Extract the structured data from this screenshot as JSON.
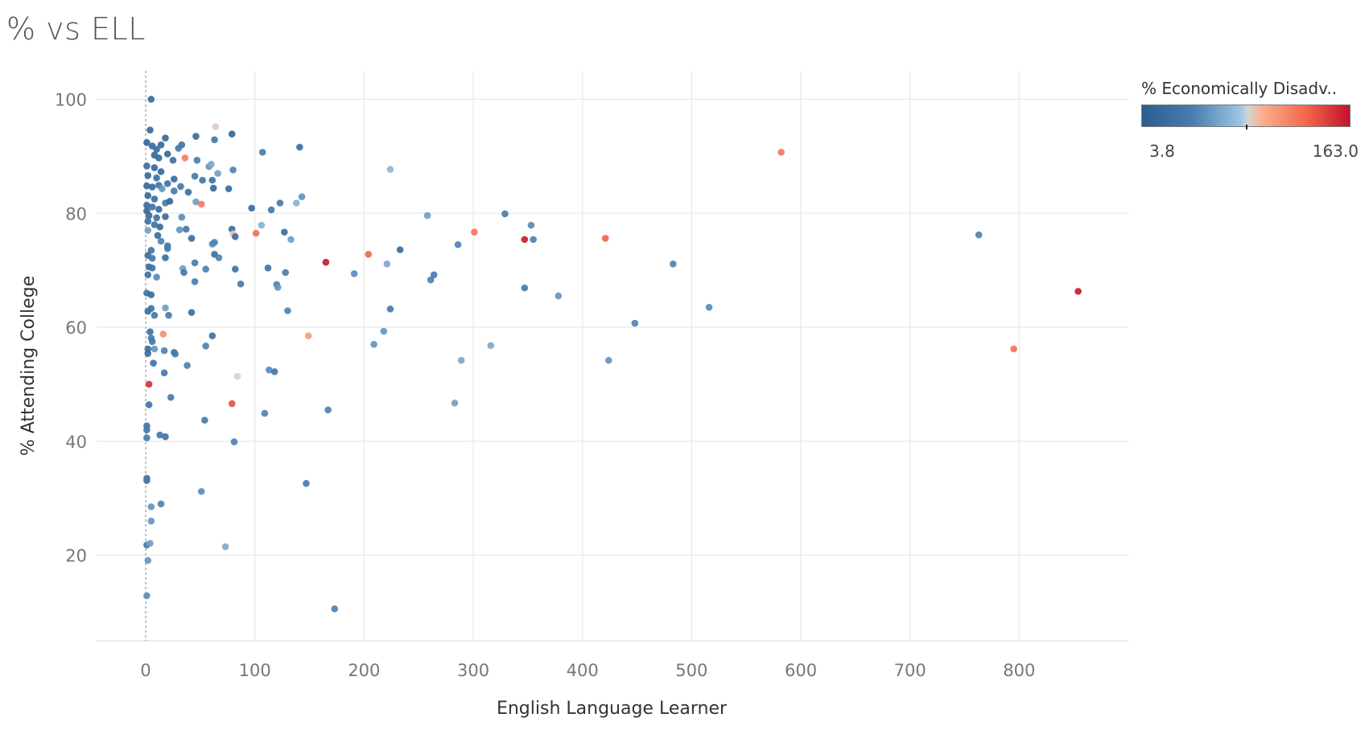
{
  "title": "% vs ELL",
  "legend": {
    "title": "% Economically Disadv..",
    "min_label": "3.8",
    "max_label": "163.0"
  },
  "chart_data": {
    "type": "scatter",
    "xlabel": "English Language Learner",
    "ylabel": "% Attending College",
    "xlim": [
      -45,
      900
    ],
    "ylim": [
      5,
      105
    ],
    "xticks": [
      0,
      100,
      200,
      300,
      400,
      500,
      600,
      700,
      800
    ],
    "yticks": [
      20,
      40,
      60,
      80,
      100
    ],
    "grid": true,
    "reference_line_x": 0,
    "color_variable": "% Economically Disadv..",
    "color_range": [
      3.8,
      163.0
    ],
    "points": [
      {
        "x": 5,
        "y": 100,
        "c": 20
      },
      {
        "x": 4,
        "y": 94.6,
        "c": 18
      },
      {
        "x": 1,
        "y": 92.4,
        "c": 15
      },
      {
        "x": 6,
        "y": 91.8,
        "c": 20
      },
      {
        "x": 10,
        "y": 91.2,
        "c": 22
      },
      {
        "x": 14,
        "y": 92.0,
        "c": 18
      },
      {
        "x": 18,
        "y": 93.2,
        "c": 18
      },
      {
        "x": 8,
        "y": 90.2,
        "c": 15
      },
      {
        "x": 12,
        "y": 89.7,
        "c": 20
      },
      {
        "x": 20,
        "y": 90.4,
        "c": 18
      },
      {
        "x": 25,
        "y": 89.3,
        "c": 25
      },
      {
        "x": 30,
        "y": 91.4,
        "c": 35
      },
      {
        "x": 33,
        "y": 92.0,
        "c": 30
      },
      {
        "x": 46,
        "y": 93.5,
        "c": 20
      },
      {
        "x": 63,
        "y": 92.9,
        "c": 35
      },
      {
        "x": 79,
        "y": 93.9,
        "c": 15
      },
      {
        "x": 64,
        "y": 95.2,
        "c": 88
      },
      {
        "x": 36,
        "y": 89.7,
        "c": 118
      },
      {
        "x": 47,
        "y": 89.3,
        "c": 40
      },
      {
        "x": 58,
        "y": 88.2,
        "c": 55
      },
      {
        "x": 60,
        "y": 88.6,
        "c": 65
      },
      {
        "x": 66,
        "y": 87.0,
        "c": 60
      },
      {
        "x": 80,
        "y": 87.6,
        "c": 45
      },
      {
        "x": 1,
        "y": 88.3,
        "c": 22
      },
      {
        "x": 8,
        "y": 88.0,
        "c": 18
      },
      {
        "x": 14,
        "y": 87.3,
        "c": 20
      },
      {
        "x": 2,
        "y": 86.6,
        "c": 18
      },
      {
        "x": 10,
        "y": 86.2,
        "c": 25
      },
      {
        "x": 20,
        "y": 85.2,
        "c": 30
      },
      {
        "x": 26,
        "y": 86.0,
        "c": 22
      },
      {
        "x": 45,
        "y": 86.5,
        "c": 40
      },
      {
        "x": 52,
        "y": 85.8,
        "c": 35
      },
      {
        "x": 61,
        "y": 85.8,
        "c": 28
      },
      {
        "x": 62,
        "y": 84.4,
        "c": 15
      },
      {
        "x": 76,
        "y": 84.3,
        "c": 22
      },
      {
        "x": 1,
        "y": 84.8,
        "c": 18
      },
      {
        "x": 6,
        "y": 84.6,
        "c": 20
      },
      {
        "x": 12,
        "y": 84.9,
        "c": 30
      },
      {
        "x": 15,
        "y": 84.3,
        "c": 55
      },
      {
        "x": 26,
        "y": 83.9,
        "c": 40
      },
      {
        "x": 32,
        "y": 84.7,
        "c": 35
      },
      {
        "x": 39,
        "y": 83.7,
        "c": 25
      },
      {
        "x": 2,
        "y": 83.1,
        "c": 18
      },
      {
        "x": 8,
        "y": 82.5,
        "c": 25
      },
      {
        "x": 18,
        "y": 81.8,
        "c": 40
      },
      {
        "x": 22,
        "y": 82.1,
        "c": 15
      },
      {
        "x": 46,
        "y": 82.0,
        "c": 60
      },
      {
        "x": 51,
        "y": 81.6,
        "c": 120
      },
      {
        "x": 1,
        "y": 81.4,
        "c": 22
      },
      {
        "x": 6,
        "y": 81.1,
        "c": 30
      },
      {
        "x": 12,
        "y": 80.7,
        "c": 20
      },
      {
        "x": 1,
        "y": 80.4,
        "c": 15
      },
      {
        "x": 3,
        "y": 79.6,
        "c": 20
      },
      {
        "x": 10,
        "y": 79.2,
        "c": 28
      },
      {
        "x": 18,
        "y": 79.4,
        "c": 22
      },
      {
        "x": 33,
        "y": 79.3,
        "c": 50
      },
      {
        "x": 2,
        "y": 78.6,
        "c": 25
      },
      {
        "x": 8,
        "y": 78.0,
        "c": 30
      },
      {
        "x": 13,
        "y": 77.6,
        "c": 22
      },
      {
        "x": 31,
        "y": 77.1,
        "c": 55
      },
      {
        "x": 37,
        "y": 77.2,
        "c": 38
      },
      {
        "x": 2,
        "y": 77.0,
        "c": 60
      },
      {
        "x": 11,
        "y": 76.1,
        "c": 20
      },
      {
        "x": 14,
        "y": 75.1,
        "c": 45
      },
      {
        "x": 20,
        "y": 74.3,
        "c": 35
      },
      {
        "x": 20,
        "y": 73.8,
        "c": 40
      },
      {
        "x": 42,
        "y": 75.6,
        "c": 22
      },
      {
        "x": 61,
        "y": 74.6,
        "c": 50
      },
      {
        "x": 63,
        "y": 74.9,
        "c": 45
      },
      {
        "x": 79,
        "y": 77.2,
        "c": 20
      },
      {
        "x": 80,
        "y": 76.4,
        "c": 90
      },
      {
        "x": 82,
        "y": 75.9,
        "c": 25
      },
      {
        "x": 97,
        "y": 80.9,
        "c": 22
      },
      {
        "x": 101,
        "y": 76.5,
        "c": 125
      },
      {
        "x": 106,
        "y": 77.9,
        "c": 70
      },
      {
        "x": 115,
        "y": 80.6,
        "c": 35
      },
      {
        "x": 123,
        "y": 81.8,
        "c": 40
      },
      {
        "x": 127,
        "y": 76.7,
        "c": 25
      },
      {
        "x": 133,
        "y": 75.4,
        "c": 60
      },
      {
        "x": 138,
        "y": 81.8,
        "c": 70
      },
      {
        "x": 143,
        "y": 82.9,
        "c": 55
      },
      {
        "x": 141,
        "y": 91.6,
        "c": 25
      },
      {
        "x": 107,
        "y": 90.7,
        "c": 40
      },
      {
        "x": 224,
        "y": 87.7,
        "c": 72
      },
      {
        "x": 5,
        "y": 73.5,
        "c": 30
      },
      {
        "x": 2,
        "y": 72.6,
        "c": 20
      },
      {
        "x": 6,
        "y": 72.1,
        "c": 35
      },
      {
        "x": 18,
        "y": 72.2,
        "c": 25
      },
      {
        "x": 3,
        "y": 70.6,
        "c": 22
      },
      {
        "x": 6,
        "y": 70.4,
        "c": 30
      },
      {
        "x": 2,
        "y": 69.2,
        "c": 30
      },
      {
        "x": 10,
        "y": 68.8,
        "c": 50
      },
      {
        "x": 34,
        "y": 70.3,
        "c": 60
      },
      {
        "x": 35,
        "y": 69.6,
        "c": 35
      },
      {
        "x": 45,
        "y": 71.3,
        "c": 40
      },
      {
        "x": 45,
        "y": 68.0,
        "c": 40
      },
      {
        "x": 55,
        "y": 70.2,
        "c": 45
      },
      {
        "x": 63,
        "y": 72.8,
        "c": 25
      },
      {
        "x": 67,
        "y": 72.2,
        "c": 45
      },
      {
        "x": 82,
        "y": 70.2,
        "c": 30
      },
      {
        "x": 87,
        "y": 67.6,
        "c": 40
      },
      {
        "x": 112,
        "y": 70.4,
        "c": 30
      },
      {
        "x": 120,
        "y": 67.5,
        "c": 45
      },
      {
        "x": 121,
        "y": 67.0,
        "c": 55
      },
      {
        "x": 128,
        "y": 69.6,
        "c": 40
      },
      {
        "x": 1,
        "y": 66.0,
        "c": 30
      },
      {
        "x": 5,
        "y": 65.7,
        "c": 22
      },
      {
        "x": 2,
        "y": 62.8,
        "c": 25
      },
      {
        "x": 5,
        "y": 63.3,
        "c": 30
      },
      {
        "x": 8,
        "y": 62.1,
        "c": 35
      },
      {
        "x": 18,
        "y": 63.4,
        "c": 60
      },
      {
        "x": 21,
        "y": 62.1,
        "c": 40
      },
      {
        "x": 42,
        "y": 62.6,
        "c": 25
      },
      {
        "x": 130,
        "y": 62.9,
        "c": 45
      },
      {
        "x": 4,
        "y": 59.2,
        "c": 30
      },
      {
        "x": 5,
        "y": 58.1,
        "c": 40
      },
      {
        "x": 6,
        "y": 57.5,
        "c": 35
      },
      {
        "x": 2,
        "y": 56.2,
        "c": 25
      },
      {
        "x": 2,
        "y": 55.4,
        "c": 22
      },
      {
        "x": 8,
        "y": 56.2,
        "c": 55
      },
      {
        "x": 16,
        "y": 58.8,
        "c": 112
      },
      {
        "x": 17,
        "y": 55.9,
        "c": 45
      },
      {
        "x": 26,
        "y": 55.6,
        "c": 35
      },
      {
        "x": 27,
        "y": 55.3,
        "c": 40
      },
      {
        "x": 7,
        "y": 53.7,
        "c": 30
      },
      {
        "x": 17,
        "y": 52.0,
        "c": 35
      },
      {
        "x": 38,
        "y": 53.3,
        "c": 45
      },
      {
        "x": 55,
        "y": 56.7,
        "c": 45
      },
      {
        "x": 61,
        "y": 58.5,
        "c": 30
      },
      {
        "x": 149,
        "y": 58.5,
        "c": 105
      },
      {
        "x": 84,
        "y": 51.4,
        "c": 85
      },
      {
        "x": 113,
        "y": 52.5,
        "c": 50
      },
      {
        "x": 118,
        "y": 52.2,
        "c": 35
      },
      {
        "x": 3,
        "y": 50.0,
        "c": 150
      },
      {
        "x": 3,
        "y": 46.4,
        "c": 30
      },
      {
        "x": 23,
        "y": 47.7,
        "c": 40
      },
      {
        "x": 79,
        "y": 46.6,
        "c": 138
      },
      {
        "x": 109,
        "y": 44.9,
        "c": 45
      },
      {
        "x": 167,
        "y": 45.5,
        "c": 45
      },
      {
        "x": 54,
        "y": 43.7,
        "c": 40
      },
      {
        "x": 1,
        "y": 42.7,
        "c": 30
      },
      {
        "x": 1,
        "y": 42.0,
        "c": 35
      },
      {
        "x": 1,
        "y": 40.6,
        "c": 40
      },
      {
        "x": 13,
        "y": 41.1,
        "c": 35
      },
      {
        "x": 18,
        "y": 40.8,
        "c": 30
      },
      {
        "x": 81,
        "y": 39.9,
        "c": 45
      },
      {
        "x": 1,
        "y": 33.5,
        "c": 30
      },
      {
        "x": 1,
        "y": 33.1,
        "c": 35
      },
      {
        "x": 147,
        "y": 32.6,
        "c": 40
      },
      {
        "x": 51,
        "y": 31.2,
        "c": 50
      },
      {
        "x": 14,
        "y": 29.0,
        "c": 45
      },
      {
        "x": 5,
        "y": 28.5,
        "c": 55
      },
      {
        "x": 5,
        "y": 26.0,
        "c": 55
      },
      {
        "x": 1,
        "y": 21.8,
        "c": 40
      },
      {
        "x": 4,
        "y": 22.1,
        "c": 60
      },
      {
        "x": 73,
        "y": 21.5,
        "c": 65
      },
      {
        "x": 2,
        "y": 19.1,
        "c": 55
      },
      {
        "x": 1,
        "y": 12.9,
        "c": 50
      },
      {
        "x": 173,
        "y": 10.6,
        "c": 45
      },
      {
        "x": 165,
        "y": 71.4,
        "c": 160
      },
      {
        "x": 191,
        "y": 69.4,
        "c": 50
      },
      {
        "x": 204,
        "y": 72.8,
        "c": 128
      },
      {
        "x": 221,
        "y": 71.1,
        "c": 65
      },
      {
        "x": 224,
        "y": 63.2,
        "c": 40
      },
      {
        "x": 233,
        "y": 73.6,
        "c": 25
      },
      {
        "x": 209,
        "y": 57.0,
        "c": 55
      },
      {
        "x": 218,
        "y": 59.3,
        "c": 55
      },
      {
        "x": 258,
        "y": 79.6,
        "c": 60
      },
      {
        "x": 261,
        "y": 68.3,
        "c": 45
      },
      {
        "x": 264,
        "y": 69.2,
        "c": 40
      },
      {
        "x": 286,
        "y": 74.5,
        "c": 45
      },
      {
        "x": 283,
        "y": 46.7,
        "c": 60
      },
      {
        "x": 289,
        "y": 54.2,
        "c": 65
      },
      {
        "x": 301,
        "y": 76.7,
        "c": 122
      },
      {
        "x": 316,
        "y": 56.8,
        "c": 65
      },
      {
        "x": 329,
        "y": 79.9,
        "c": 40
      },
      {
        "x": 347,
        "y": 75.4,
        "c": 158
      },
      {
        "x": 347,
        "y": 66.9,
        "c": 40
      },
      {
        "x": 353,
        "y": 77.9,
        "c": 50
      },
      {
        "x": 355,
        "y": 75.4,
        "c": 45
      },
      {
        "x": 378,
        "y": 65.5,
        "c": 55
      },
      {
        "x": 421,
        "y": 75.6,
        "c": 130
      },
      {
        "x": 424,
        "y": 54.2,
        "c": 55
      },
      {
        "x": 448,
        "y": 60.7,
        "c": 45
      },
      {
        "x": 483,
        "y": 71.1,
        "c": 45
      },
      {
        "x": 516,
        "y": 63.5,
        "c": 50
      },
      {
        "x": 582,
        "y": 90.7,
        "c": 122
      },
      {
        "x": 763,
        "y": 76.2,
        "c": 45
      },
      {
        "x": 795,
        "y": 56.2,
        "c": 125
      },
      {
        "x": 854,
        "y": 66.3,
        "c": 160
      }
    ]
  }
}
